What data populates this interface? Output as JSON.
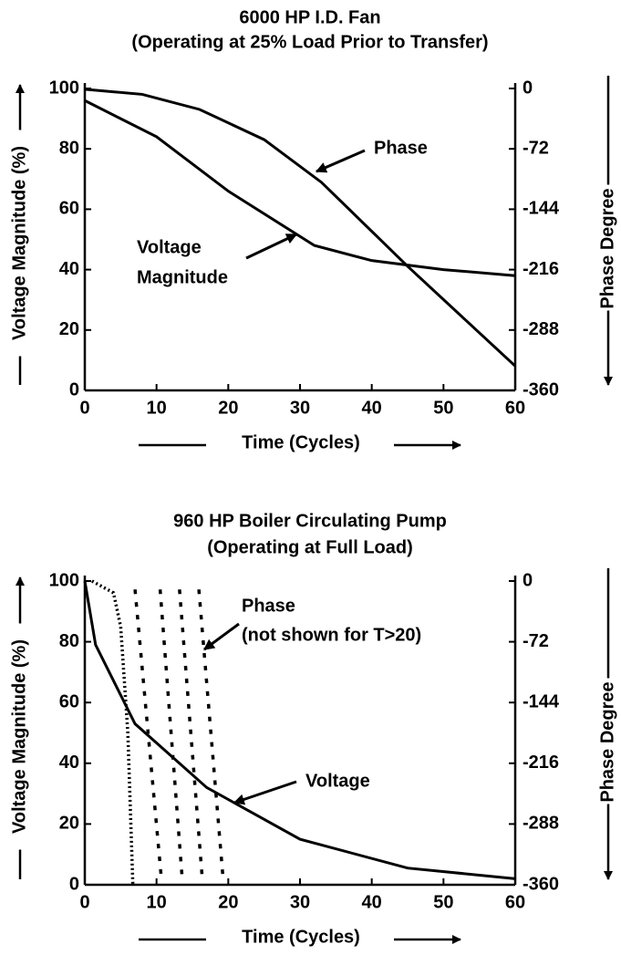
{
  "chart_data": [
    {
      "type": "line",
      "title": [
        "6000 HP I.D. Fan",
        "(Operating at 25% Load Prior to Transfer)"
      ],
      "xlabel": "Time (Cycles)",
      "ylabel": "Voltage Magnitude (%)",
      "y2label": "Phase Degree",
      "xlim": [
        0,
        60
      ],
      "ylim": [
        0,
        100
      ],
      "y2lim": [
        -360,
        0
      ],
      "xticks": [
        0,
        10,
        20,
        30,
        40,
        50,
        60
      ],
      "yticks": [
        0,
        20,
        40,
        60,
        80,
        100
      ],
      "y2ticks": [
        0,
        -72,
        -144,
        -216,
        -288,
        -360
      ],
      "series": [
        {
          "color": "#000000",
          "dash": "solid",
          "x": [
            0,
            10,
            20,
            32,
            40,
            50,
            60
          ],
          "values": [
            96,
            84,
            66,
            48,
            43,
            40,
            38
          ]
        },
        {
          "color": "#000000",
          "dash": "solid",
          "axis": "y2",
          "x": [
            0,
            8,
            16,
            25,
            33,
            45,
            60
          ],
          "values": [
            -1,
            -7,
            -25,
            -61,
            -112,
            -212,
            -331
          ]
        }
      ],
      "annotations": [
        {
          "text": [
            "Phase"
          ]
        },
        {
          "text": [
            "Voltage",
            "Magnitude"
          ]
        }
      ]
    },
    {
      "type": "line",
      "title": [
        "960 HP Boiler Circulating Pump",
        "(Operating at Full Load)"
      ],
      "xlabel": "Time (Cycles)",
      "ylabel": "Voltage Magnitude (%)",
      "y2label": "Phase Degree",
      "xlim": [
        0,
        60
      ],
      "ylim": [
        0,
        100
      ],
      "y2lim": [
        -360,
        0
      ],
      "xticks": [
        0,
        10,
        20,
        30,
        40,
        50,
        60
      ],
      "yticks": [
        0,
        20,
        40,
        60,
        80,
        100
      ],
      "y2ticks": [
        0,
        -72,
        -144,
        -216,
        -288,
        -360
      ],
      "series": [
        {
          "color": "#000000",
          "dash": "solid",
          "x": [
            0,
            1.5,
            7,
            17,
            30,
            45,
            60
          ],
          "values": [
            100,
            79,
            53,
            32,
            15,
            5.5,
            2
          ]
        },
        {
          "color": "#000000",
          "dash": "dot",
          "axis": "y2",
          "x": [
            1,
            4,
            5,
            6,
            6.7
          ],
          "values": [
            0,
            -14,
            -54,
            -180,
            -360
          ]
        },
        {
          "color": "#000000",
          "dash": "dash",
          "axis": "y2",
          "x": [
            7,
            10.7
          ],
          "values": [
            -10,
            -355
          ]
        },
        {
          "color": "#000000",
          "dash": "dash",
          "axis": "y2",
          "x": [
            10.5,
            13.6
          ],
          "values": [
            -10,
            -355
          ]
        },
        {
          "color": "#000000",
          "dash": "dash",
          "axis": "y2",
          "x": [
            13.2,
            16.4
          ],
          "values": [
            -10,
            -355
          ]
        },
        {
          "color": "#000000",
          "dash": "dash",
          "axis": "y2",
          "x": [
            15.9,
            19.3
          ],
          "values": [
            -10,
            -355
          ]
        }
      ],
      "annotations": [
        {
          "text": [
            "Phase",
            "(not shown for T>20)"
          ]
        },
        {
          "text": [
            "Voltage"
          ]
        }
      ]
    }
  ]
}
